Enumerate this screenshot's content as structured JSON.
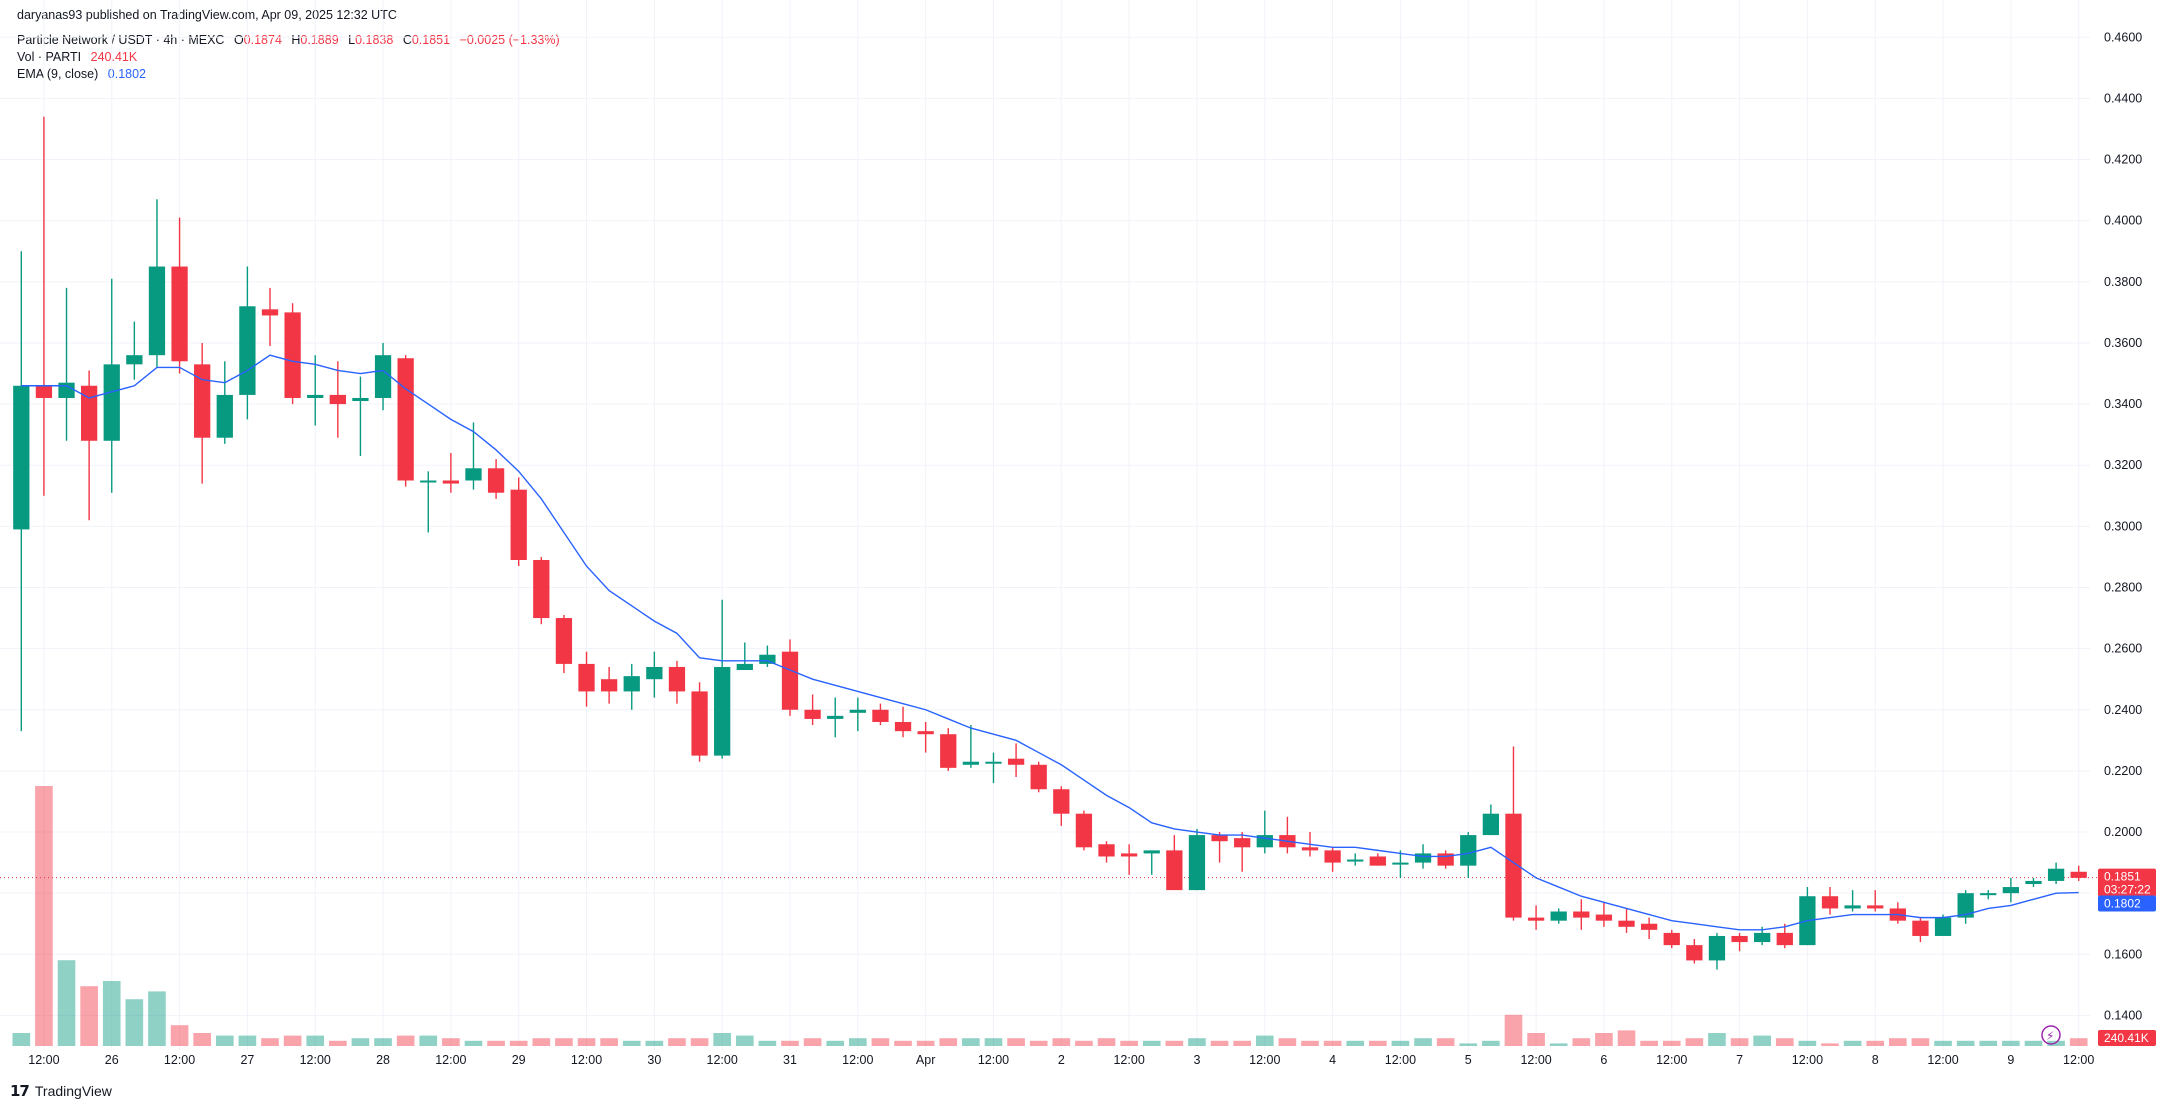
{
  "header": {
    "published": "daryanas93 published on TradingView.com, Apr 09, 2025 12:32 UTC",
    "symbol": "Particle Network / USDT · 4h · MEXC",
    "o_label": "O",
    "o": "0.1874",
    "h_label": "H",
    "h": "0.1889",
    "l_label": "L",
    "l": "0.1838",
    "c_label": "C",
    "c": "0.1851",
    "change": "−0.0025 (−1.33%)",
    "vol_label": "Vol · PARTI",
    "vol_value": "240.41K",
    "ema_label": "EMA (9, close)",
    "ema_value": "0.1802"
  },
  "brand": {
    "name": "TradingView"
  },
  "colors": {
    "up": "#089981",
    "down": "#f23645",
    "ema": "#2962ff",
    "grid": "#f0f3fa",
    "price_line": "#f23645"
  },
  "chart_data": {
    "type": "candlestick",
    "interval": "4h",
    "ylim": [
      0.13,
      0.465
    ],
    "y_ticks": [
      "0.4600",
      "0.4400",
      "0.4200",
      "0.4000",
      "0.3800",
      "0.3600",
      "0.3400",
      "0.3200",
      "0.3000",
      "0.2800",
      "0.2600",
      "0.2400",
      "0.2200",
      "0.2000",
      "0.1800",
      "0.1600",
      "0.1400"
    ],
    "x_ticks": [
      "12:00",
      "26",
      "12:00",
      "27",
      "12:00",
      "28",
      "12:00",
      "29",
      "12:00",
      "30",
      "12:00",
      "31",
      "12:00",
      "Apr",
      "12:00",
      "2",
      "12:00",
      "3",
      "12:00",
      "4",
      "12:00",
      "5",
      "12:00",
      "6",
      "12:00",
      "7",
      "12:00",
      "8",
      "12:00",
      "9",
      "12:00"
    ],
    "candles": [
      [
        0.299,
        0.346,
        0.233,
        0.39
      ],
      [
        0.346,
        0.342,
        0.31,
        0.434
      ],
      [
        0.342,
        0.347,
        0.328,
        0.378
      ],
      [
        0.346,
        0.328,
        0.302,
        0.351
      ],
      [
        0.328,
        0.353,
        0.311,
        0.381
      ],
      [
        0.353,
        0.356,
        0.348,
        0.367
      ],
      [
        0.356,
        0.385,
        0.352,
        0.407
      ],
      [
        0.385,
        0.354,
        0.35,
        0.401
      ],
      [
        0.353,
        0.329,
        0.314,
        0.36
      ],
      [
        0.329,
        0.343,
        0.327,
        0.354
      ],
      [
        0.343,
        0.372,
        0.335,
        0.385
      ],
      [
        0.371,
        0.369,
        0.359,
        0.378
      ],
      [
        0.37,
        0.342,
        0.34,
        0.373
      ],
      [
        0.342,
        0.343,
        0.333,
        0.356
      ],
      [
        0.343,
        0.34,
        0.329,
        0.354
      ],
      [
        0.341,
        0.342,
        0.323,
        0.349
      ],
      [
        0.342,
        0.356,
        0.338,
        0.36
      ],
      [
        0.355,
        0.315,
        0.313,
        0.356
      ],
      [
        0.315,
        0.315,
        0.298,
        0.318
      ],
      [
        0.315,
        0.314,
        0.311,
        0.324
      ],
      [
        0.315,
        0.319,
        0.312,
        0.334
      ],
      [
        0.319,
        0.311,
        0.309,
        0.322
      ],
      [
        0.312,
        0.289,
        0.287,
        0.316
      ],
      [
        0.289,
        0.27,
        0.268,
        0.29
      ],
      [
        0.27,
        0.255,
        0.252,
        0.271
      ],
      [
        0.255,
        0.246,
        0.241,
        0.259
      ],
      [
        0.25,
        0.246,
        0.242,
        0.254
      ],
      [
        0.246,
        0.251,
        0.24,
        0.255
      ],
      [
        0.25,
        0.254,
        0.244,
        0.259
      ],
      [
        0.254,
        0.246,
        0.242,
        0.256
      ],
      [
        0.246,
        0.225,
        0.223,
        0.249
      ],
      [
        0.225,
        0.254,
        0.224,
        0.276
      ],
      [
        0.253,
        0.255,
        0.253,
        0.262
      ],
      [
        0.255,
        0.258,
        0.254,
        0.261
      ],
      [
        0.259,
        0.24,
        0.238,
        0.263
      ],
      [
        0.24,
        0.237,
        0.235,
        0.245
      ],
      [
        0.237,
        0.238,
        0.231,
        0.244
      ],
      [
        0.239,
        0.24,
        0.233,
        0.244
      ],
      [
        0.24,
        0.236,
        0.235,
        0.242
      ],
      [
        0.236,
        0.233,
        0.231,
        0.241
      ],
      [
        0.233,
        0.232,
        0.226,
        0.236
      ],
      [
        0.232,
        0.221,
        0.22,
        0.234
      ],
      [
        0.222,
        0.223,
        0.221,
        0.235
      ],
      [
        0.223,
        0.223,
        0.216,
        0.226
      ],
      [
        0.224,
        0.222,
        0.218,
        0.229
      ],
      [
        0.222,
        0.214,
        0.213,
        0.223
      ],
      [
        0.214,
        0.206,
        0.202,
        0.215
      ],
      [
        0.206,
        0.195,
        0.194,
        0.207
      ],
      [
        0.196,
        0.192,
        0.19,
        0.197
      ],
      [
        0.193,
        0.192,
        0.186,
        0.196
      ],
      [
        0.193,
        0.194,
        0.186,
        0.194
      ],
      [
        0.194,
        0.181,
        0.181,
        0.199
      ],
      [
        0.181,
        0.199,
        0.181,
        0.201
      ],
      [
        0.199,
        0.197,
        0.19,
        0.2
      ],
      [
        0.198,
        0.195,
        0.187,
        0.2
      ],
      [
        0.195,
        0.199,
        0.193,
        0.207
      ],
      [
        0.199,
        0.195,
        0.193,
        0.205
      ],
      [
        0.195,
        0.194,
        0.192,
        0.2
      ],
      [
        0.194,
        0.19,
        0.187,
        0.195
      ],
      [
        0.191,
        0.191,
        0.189,
        0.193
      ],
      [
        0.192,
        0.189,
        0.189,
        0.193
      ],
      [
        0.19,
        0.19,
        0.185,
        0.194
      ],
      [
        0.19,
        0.193,
        0.188,
        0.196
      ],
      [
        0.193,
        0.189,
        0.188,
        0.194
      ],
      [
        0.189,
        0.199,
        0.185,
        0.2
      ],
      [
        0.199,
        0.206,
        0.199,
        0.209
      ],
      [
        0.206,
        0.172,
        0.171,
        0.228
      ],
      [
        0.172,
        0.171,
        0.168,
        0.176
      ],
      [
        0.171,
        0.174,
        0.17,
        0.175
      ],
      [
        0.174,
        0.172,
        0.168,
        0.178
      ],
      [
        0.173,
        0.171,
        0.169,
        0.177
      ],
      [
        0.171,
        0.169,
        0.167,
        0.175
      ],
      [
        0.17,
        0.168,
        0.165,
        0.172
      ],
      [
        0.167,
        0.163,
        0.162,
        0.168
      ],
      [
        0.163,
        0.158,
        0.157,
        0.165
      ],
      [
        0.158,
        0.166,
        0.155,
        0.167
      ],
      [
        0.166,
        0.164,
        0.161,
        0.167
      ],
      [
        0.164,
        0.167,
        0.163,
        0.169
      ],
      [
        0.167,
        0.163,
        0.162,
        0.17
      ],
      [
        0.163,
        0.179,
        0.163,
        0.182
      ],
      [
        0.179,
        0.175,
        0.173,
        0.182
      ],
      [
        0.175,
        0.176,
        0.174,
        0.181
      ],
      [
        0.176,
        0.175,
        0.174,
        0.181
      ],
      [
        0.175,
        0.171,
        0.17,
        0.177
      ],
      [
        0.171,
        0.166,
        0.164,
        0.172
      ],
      [
        0.166,
        0.172,
        0.166,
        0.173
      ],
      [
        0.172,
        0.18,
        0.17,
        0.181
      ],
      [
        0.18,
        0.18,
        0.178,
        0.181
      ],
      [
        0.18,
        0.182,
        0.177,
        0.185
      ],
      [
        0.183,
        0.184,
        0.182,
        0.185
      ],
      [
        0.184,
        0.188,
        0.183,
        0.19
      ],
      [
        0.187,
        0.185,
        0.184,
        0.189
      ]
    ],
    "volume": [
      5,
      100,
      33,
      23,
      25,
      18,
      21,
      8,
      5,
      4,
      4,
      3,
      4,
      4,
      2,
      3,
      3,
      4,
      4,
      3,
      2,
      2,
      2,
      3,
      3,
      3,
      3,
      2,
      2,
      3,
      3,
      5,
      4,
      2,
      2,
      3,
      2,
      3,
      3,
      2,
      2,
      3,
      3,
      3,
      3,
      2,
      3,
      2,
      3,
      2,
      2,
      2,
      3,
      2,
      2,
      4,
      3,
      2,
      2,
      2,
      2,
      2,
      3,
      3,
      1,
      2,
      12,
      5,
      1,
      3,
      5,
      6,
      2,
      2,
      3,
      5,
      3,
      4,
      3,
      2,
      1,
      2,
      2,
      3,
      3,
      2,
      2,
      2,
      2,
      2,
      2,
      3
    ],
    "volume_max": 100,
    "ema": [
      0.346,
      0.346,
      0.346,
      0.342,
      0.344,
      0.346,
      0.352,
      0.352,
      0.348,
      0.347,
      0.351,
      0.356,
      0.354,
      0.353,
      0.351,
      0.35,
      0.351,
      0.345,
      0.34,
      0.335,
      0.331,
      0.325,
      0.318,
      0.309,
      0.298,
      0.287,
      0.279,
      0.274,
      0.269,
      0.265,
      0.257,
      0.256,
      0.256,
      0.256,
      0.253,
      0.25,
      0.248,
      0.246,
      0.244,
      0.242,
      0.24,
      0.237,
      0.234,
      0.232,
      0.23,
      0.226,
      0.222,
      0.217,
      0.212,
      0.208,
      0.203,
      0.201,
      0.2,
      0.199,
      0.199,
      0.198,
      0.197,
      0.196,
      0.195,
      0.195,
      0.194,
      0.193,
      0.192,
      0.192,
      0.193,
      0.195,
      0.19,
      0.185,
      0.182,
      0.179,
      0.177,
      0.175,
      0.173,
      0.171,
      0.17,
      0.169,
      0.168,
      0.168,
      0.169,
      0.171,
      0.172,
      0.173,
      0.173,
      0.173,
      0.172,
      0.172,
      0.173,
      0.175,
      0.176,
      0.178,
      0.18,
      0.1802
    ],
    "current_price": "0.1851",
    "countdown": "03:27:22",
    "ema_last": "0.1802",
    "volume_last": "240.41K"
  }
}
